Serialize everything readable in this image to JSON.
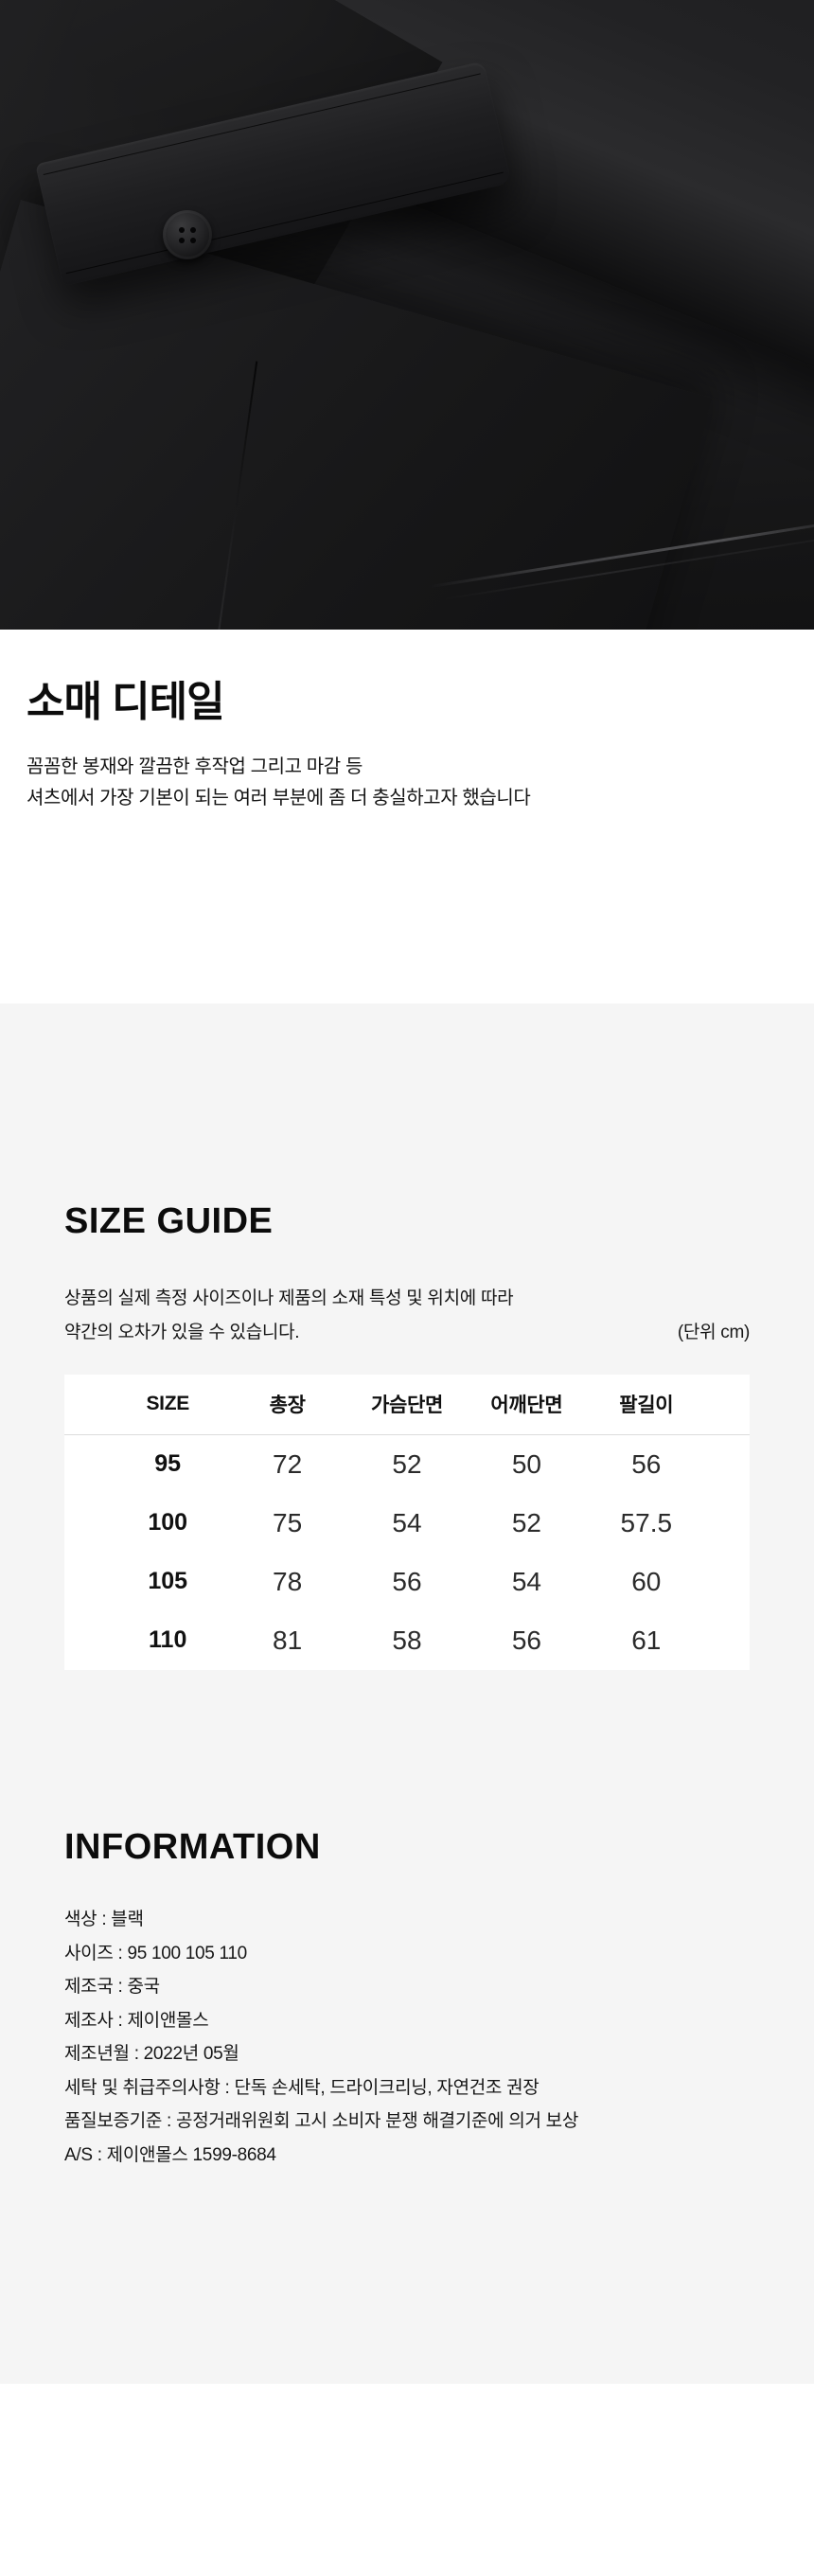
{
  "sleeve_section": {
    "title": "소매 디테일",
    "line1": "꼼꼼한 봉재와 깔끔한 후작업 그리고 마감 등",
    "line2": "셔츠에서 가장 기본이 되는 여러 부분에 좀 더 충실하고자 했습니다"
  },
  "size_guide": {
    "title": "SIZE GUIDE",
    "note_line1": "상품의 실제 측정 사이즈이나 제품의 소재 특성 및 위치에 따라",
    "note_line2": "약간의 오차가 있을 수 있습니다.",
    "unit_label": "(단위 cm)",
    "table": {
      "columns": [
        "SIZE",
        "총장",
        "가슴단면",
        "어깨단면",
        "팔길이"
      ],
      "rows": [
        {
          "size": "95",
          "values": [
            "72",
            "52",
            "50",
            "56"
          ]
        },
        {
          "size": "100",
          "values": [
            "75",
            "54",
            "52",
            "57.5"
          ]
        },
        {
          "size": "105",
          "values": [
            "78",
            "56",
            "54",
            "60"
          ]
        },
        {
          "size": "110",
          "values": [
            "81",
            "58",
            "56",
            "61"
          ]
        }
      ]
    }
  },
  "information": {
    "title": "INFORMATION",
    "items": [
      "색상 : 블랙",
      "사이즈 : 95 100 105 110",
      "제조국 : 중국",
      "제조사 : 제이앤몰스",
      "제조년월 : 2022년 05월",
      "세탁 및 취급주의사항 : 단독 손세탁, 드라이크리닝, 자연건조 권장",
      "품질보증기준 : 공정거래위원회 고시 소비자 분쟁 해결기준에 의거 보상",
      "A/S : 제이앤몰스 1599-8684"
    ]
  },
  "colors": {
    "section_bg": "#f5f5f5",
    "table_bg": "#ffffff",
    "heading_text": "#0c0c0c",
    "body_text": "#161616",
    "divider": "#dcdcdc",
    "photo_base": "#1f1f21"
  }
}
